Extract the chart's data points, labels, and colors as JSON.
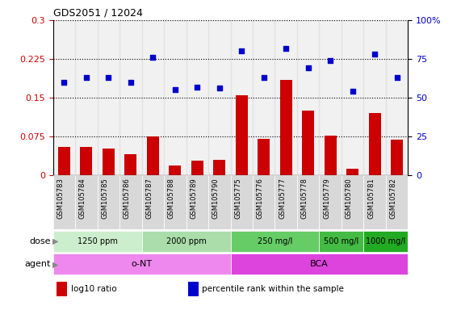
{
  "title": "GDS2051 / 12024",
  "samples": [
    "GSM105783",
    "GSM105784",
    "GSM105785",
    "GSM105786",
    "GSM105787",
    "GSM105788",
    "GSM105789",
    "GSM105790",
    "GSM105775",
    "GSM105776",
    "GSM105777",
    "GSM105778",
    "GSM105779",
    "GSM105780",
    "GSM105781",
    "GSM105782"
  ],
  "log10_ratio": [
    0.055,
    0.055,
    0.052,
    0.04,
    0.075,
    0.018,
    0.028,
    0.03,
    0.154,
    0.07,
    0.185,
    0.125,
    0.077,
    0.012,
    0.12,
    0.068
  ],
  "percentile_rank": [
    60,
    63,
    63,
    60,
    76,
    55,
    57,
    56,
    80,
    63,
    82,
    69,
    74,
    54,
    78,
    63
  ],
  "bar_color": "#cc0000",
  "dot_color": "#0000cc",
  "ylim_left": [
    0,
    0.3
  ],
  "ylim_right": [
    0,
    100
  ],
  "yticks_left": [
    0,
    0.075,
    0.15,
    0.225,
    0.3
  ],
  "yticks_right": [
    0,
    25,
    50,
    75,
    100
  ],
  "ytick_labels_right": [
    "0",
    "25",
    "50",
    "75",
    "100%"
  ],
  "dose_groups": [
    {
      "label": "1250 ppm",
      "start": 0,
      "end": 4,
      "color": "#cceecc"
    },
    {
      "label": "2000 ppm",
      "start": 4,
      "end": 8,
      "color": "#aaddaa"
    },
    {
      "label": "250 mg/l",
      "start": 8,
      "end": 12,
      "color": "#66cc66"
    },
    {
      "label": "500 mg/l",
      "start": 12,
      "end": 14,
      "color": "#44bb44"
    },
    {
      "label": "1000 mg/l",
      "start": 14,
      "end": 16,
      "color": "#22aa22"
    }
  ],
  "agent_groups": [
    {
      "label": "o-NT",
      "start": 0,
      "end": 8,
      "color": "#ee88ee"
    },
    {
      "label": "BCA",
      "start": 8,
      "end": 16,
      "color": "#dd44dd"
    }
  ],
  "dose_label": "dose",
  "agent_label": "agent",
  "legend_items": [
    {
      "color": "#cc0000",
      "label": "log10 ratio"
    },
    {
      "color": "#0000cc",
      "label": "percentile rank within the sample"
    }
  ],
  "tick_label_color_left": "#cc0000",
  "tick_label_color_right": "#0000cc",
  "col_bg_color": "#d8d8d8"
}
